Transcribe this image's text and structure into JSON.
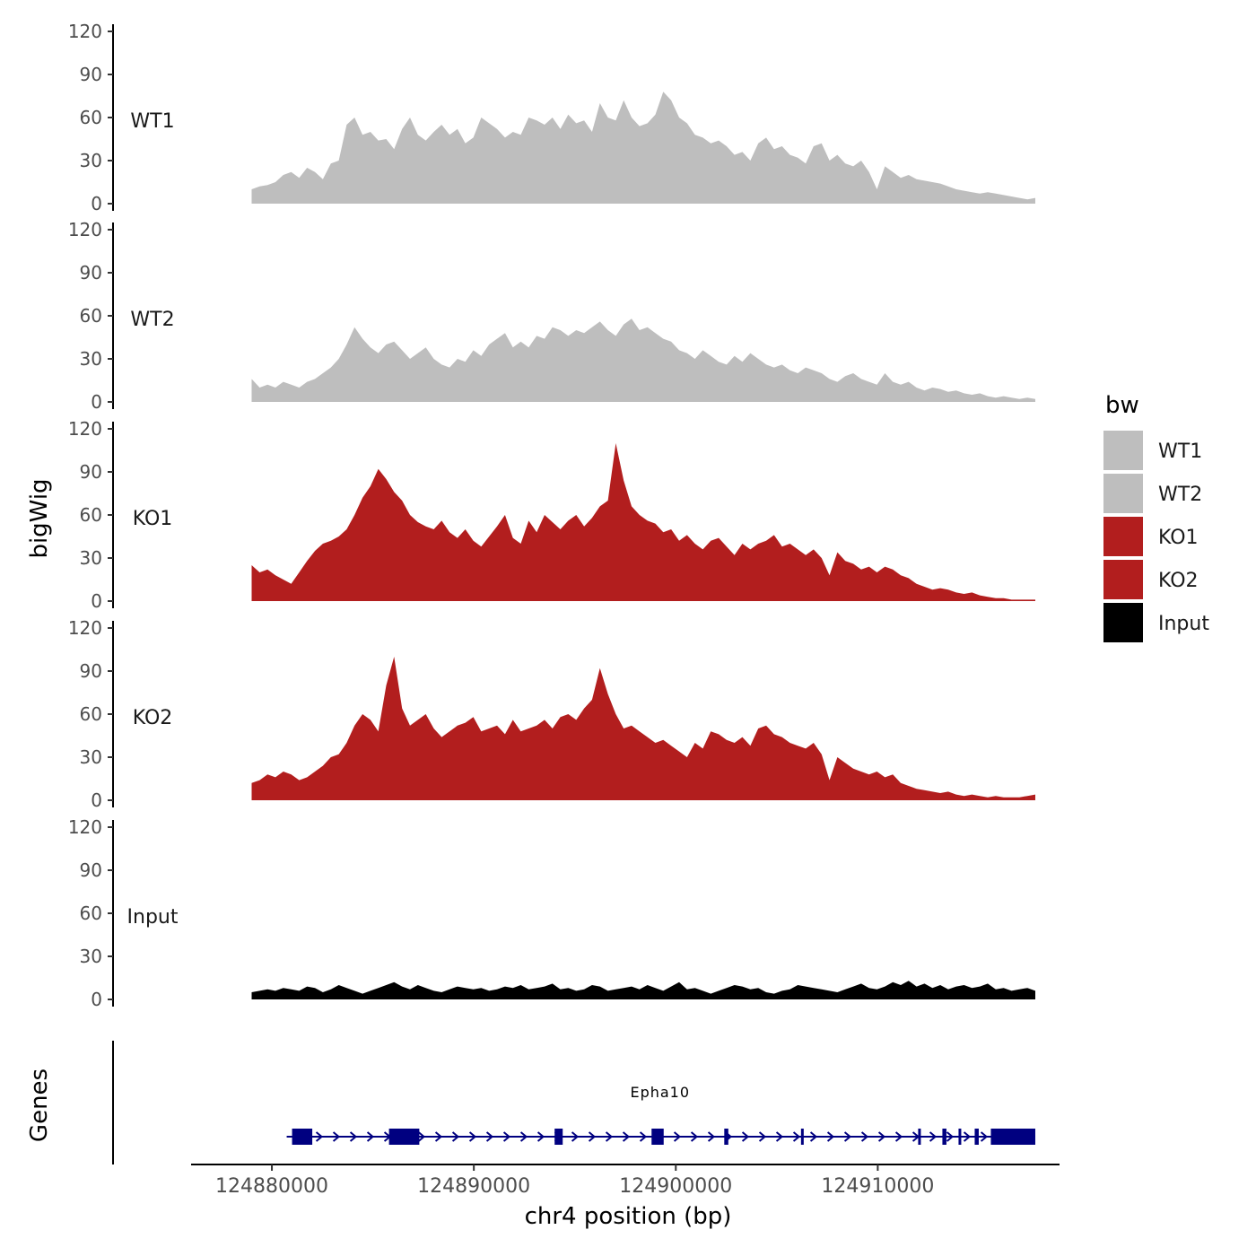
{
  "chart_data": {
    "type": "area",
    "ylabel": "bigWig",
    "xlabel": "chr4 position (bp)",
    "genes_label": "Genes",
    "xlim": [
      124876000,
      124919000
    ],
    "x_range_data": [
      124879000,
      124917800
    ],
    "x_ticks": [
      124880000,
      124890000,
      124900000,
      124910000
    ],
    "x_tick_labels": [
      "124880000",
      "124890000",
      "124900000",
      "124910000"
    ],
    "ylim": [
      0,
      120
    ],
    "y_ticks": [
      0,
      30,
      60,
      90,
      120
    ],
    "y_tick_labels": [
      "0",
      "30",
      "60",
      "90",
      "120"
    ],
    "legend": {
      "title": "bw",
      "entries": [
        {
          "name": "WT1",
          "color": "#bebebe"
        },
        {
          "name": "WT2",
          "color": "#bebebe"
        },
        {
          "name": "KO1",
          "color": "#b21e1e"
        },
        {
          "name": "KO2",
          "color": "#b21e1e"
        },
        {
          "name": "Input",
          "color": "#000000"
        }
      ]
    },
    "series": [
      {
        "name": "WT1",
        "color": "#bebebe",
        "values": [
          10,
          12,
          13,
          15,
          20,
          22,
          18,
          25,
          22,
          17,
          28,
          30,
          55,
          60,
          48,
          50,
          44,
          45,
          38,
          52,
          60,
          48,
          44,
          50,
          55,
          48,
          52,
          42,
          46,
          60,
          56,
          52,
          46,
          50,
          48,
          60,
          58,
          55,
          60,
          52,
          62,
          56,
          58,
          50,
          70,
          60,
          58,
          72,
          60,
          54,
          56,
          62,
          78,
          72,
          60,
          56,
          48,
          46,
          42,
          44,
          40,
          34,
          36,
          30,
          42,
          46,
          38,
          40,
          34,
          32,
          28,
          40,
          42,
          30,
          34,
          28,
          26,
          30,
          22,
          10,
          26,
          22,
          18,
          20,
          17,
          16,
          15,
          14,
          12,
          10,
          9,
          8,
          7,
          8,
          7,
          6,
          5,
          4,
          3,
          4
        ]
      },
      {
        "name": "WT2",
        "color": "#bebebe",
        "values": [
          16,
          10,
          12,
          10,
          14,
          12,
          10,
          14,
          16,
          20,
          24,
          30,
          40,
          52,
          44,
          38,
          34,
          40,
          42,
          36,
          30,
          34,
          38,
          30,
          26,
          24,
          30,
          28,
          36,
          32,
          40,
          44,
          48,
          38,
          42,
          38,
          46,
          44,
          52,
          50,
          46,
          50,
          48,
          52,
          56,
          50,
          46,
          54,
          58,
          50,
          52,
          48,
          44,
          42,
          36,
          34,
          30,
          36,
          32,
          28,
          26,
          32,
          28,
          34,
          30,
          26,
          24,
          26,
          22,
          20,
          24,
          22,
          20,
          16,
          14,
          18,
          20,
          16,
          14,
          12,
          20,
          14,
          12,
          14,
          10,
          8,
          10,
          9,
          7,
          8,
          6,
          5,
          6,
          4,
          3,
          4,
          3,
          2,
          3,
          2
        ]
      },
      {
        "name": "KO1",
        "color": "#b21e1e",
        "values": [
          25,
          20,
          22,
          18,
          15,
          12,
          20,
          28,
          35,
          40,
          42,
          45,
          50,
          60,
          72,
          80,
          92,
          85,
          76,
          70,
          60,
          55,
          52,
          50,
          56,
          48,
          44,
          50,
          42,
          38,
          45,
          52,
          60,
          44,
          40,
          56,
          48,
          60,
          55,
          50,
          56,
          60,
          52,
          58,
          66,
          70,
          110,
          84,
          66,
          60,
          56,
          54,
          48,
          50,
          42,
          46,
          40,
          36,
          42,
          44,
          38,
          32,
          40,
          36,
          40,
          42,
          46,
          38,
          40,
          36,
          32,
          36,
          30,
          18,
          34,
          28,
          26,
          22,
          24,
          20,
          24,
          22,
          18,
          16,
          12,
          10,
          8,
          9,
          8,
          6,
          5,
          6,
          4,
          3,
          2,
          2,
          1,
          1,
          1,
          1
        ]
      },
      {
        "name": "KO2",
        "color": "#b21e1e",
        "values": [
          12,
          14,
          18,
          16,
          20,
          18,
          14,
          16,
          20,
          24,
          30,
          32,
          40,
          52,
          60,
          56,
          48,
          80,
          100,
          64,
          52,
          56,
          60,
          50,
          44,
          48,
          52,
          54,
          58,
          48,
          50,
          52,
          46,
          56,
          48,
          50,
          52,
          56,
          50,
          58,
          60,
          56,
          64,
          70,
          92,
          74,
          60,
          50,
          52,
          48,
          44,
          40,
          42,
          38,
          34,
          30,
          40,
          36,
          48,
          46,
          42,
          40,
          44,
          38,
          50,
          52,
          46,
          44,
          40,
          38,
          36,
          40,
          32,
          14,
          30,
          26,
          22,
          20,
          18,
          20,
          16,
          18,
          12,
          10,
          8,
          7,
          6,
          5,
          6,
          4,
          3,
          4,
          3,
          2,
          3,
          2,
          2,
          2,
          3,
          4
        ]
      },
      {
        "name": "Input",
        "color": "#000000",
        "values": [
          5,
          6,
          7,
          6,
          8,
          7,
          6,
          9,
          8,
          5,
          7,
          10,
          8,
          6,
          4,
          6,
          8,
          10,
          12,
          9,
          7,
          10,
          8,
          6,
          5,
          7,
          9,
          8,
          7,
          8,
          6,
          7,
          9,
          8,
          10,
          7,
          8,
          9,
          11,
          7,
          8,
          6,
          7,
          10,
          9,
          6,
          7,
          8,
          9,
          7,
          10,
          8,
          6,
          9,
          12,
          7,
          8,
          6,
          4,
          6,
          8,
          10,
          9,
          7,
          8,
          5,
          4,
          6,
          7,
          10,
          9,
          8,
          7,
          6,
          5,
          7,
          9,
          11,
          8,
          7,
          9,
          12,
          10,
          13,
          9,
          11,
          8,
          10,
          7,
          9,
          10,
          8,
          9,
          11,
          7,
          8,
          6,
          7,
          8,
          6
        ]
      }
    ],
    "gene": {
      "name": "Epha10",
      "start": 124881000,
      "end": 124917800,
      "color": "#000080",
      "exons": [
        [
          124881000,
          124882000
        ],
        [
          124885800,
          124887300
        ],
        [
          124894000,
          124894400
        ],
        [
          124898800,
          124899400
        ],
        [
          124902400,
          124902600
        ],
        [
          124906200,
          124906300
        ],
        [
          124912000,
          124912100
        ],
        [
          124913200,
          124913400
        ],
        [
          124914000,
          124914100
        ],
        [
          124914800,
          124915000
        ],
        [
          124915600,
          124917800
        ]
      ]
    }
  }
}
